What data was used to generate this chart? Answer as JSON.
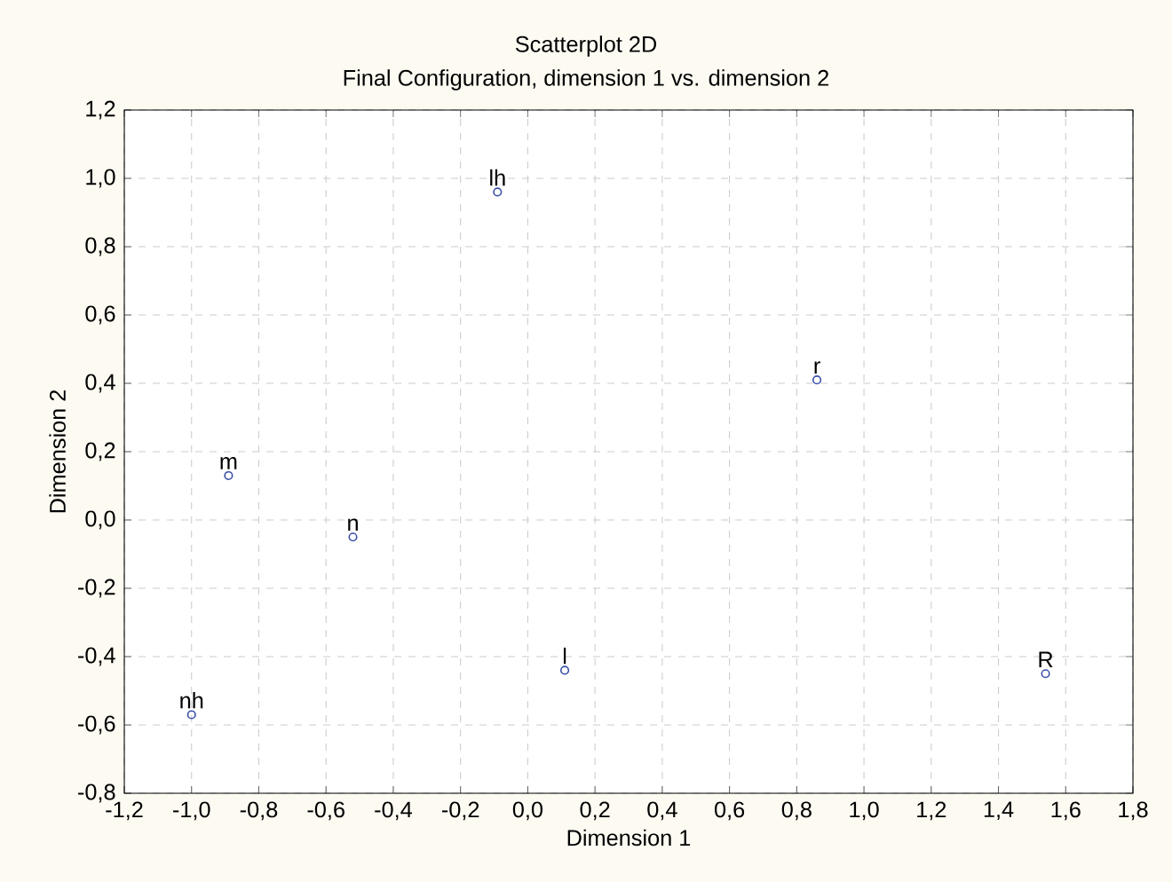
{
  "chart_data": {
    "type": "scatter",
    "title": "Scatterplot 2D",
    "subtitle": "Final Configuration, dimension 1  vs. dimension 2",
    "xlabel": "Dimension 1",
    "ylabel": "Dimension 2",
    "x": [
      -0.09,
      0.86,
      -0.89,
      -0.52,
      0.11,
      1.54,
      -1.0
    ],
    "series": [
      {
        "color": "#3a50a8",
        "values": [
          0.96,
          0.41,
          0.13,
          -0.05,
          -0.44,
          -0.45,
          -0.57
        ]
      }
    ],
    "annotations": [
      {
        "text": "lh",
        "x": -0.09,
        "y": 0.96
      },
      {
        "text": "r",
        "x": 0.86,
        "y": 0.41
      },
      {
        "text": "m",
        "x": -0.89,
        "y": 0.13
      },
      {
        "text": "n",
        "x": -0.52,
        "y": -0.05
      },
      {
        "text": "l",
        "x": 0.11,
        "y": -0.44
      },
      {
        "text": "R",
        "x": 1.54,
        "y": -0.45
      },
      {
        "text": "nh",
        "x": -1.0,
        "y": -0.57
      }
    ],
    "marker": "circle",
    "grid": true,
    "xlim": [
      -1.2,
      1.8
    ],
    "ylim": [
      -0.8,
      1.2
    ],
    "xticks": [
      {
        "value": -1.2,
        "label": "-1,2"
      },
      {
        "value": -1.0,
        "label": "-1,0"
      },
      {
        "value": -0.8,
        "label": "-0,8"
      },
      {
        "value": -0.6,
        "label": "-0,6"
      },
      {
        "value": -0.4,
        "label": "-0,4"
      },
      {
        "value": -0.2,
        "label": "-0,2"
      },
      {
        "value": 0.0,
        "label": "0,0"
      },
      {
        "value": 0.2,
        "label": "0,2"
      },
      {
        "value": 0.4,
        "label": "0,4"
      },
      {
        "value": 0.6,
        "label": "0,6"
      },
      {
        "value": 0.8,
        "label": "0,8"
      },
      {
        "value": 1.0,
        "label": "1,0"
      },
      {
        "value": 1.2,
        "label": "1,2"
      },
      {
        "value": 1.4,
        "label": "1,4"
      },
      {
        "value": 1.6,
        "label": "1,6"
      },
      {
        "value": 1.8,
        "label": "1,8"
      }
    ],
    "yticks": [
      {
        "value": -0.8,
        "label": "-0,8"
      },
      {
        "value": -0.6,
        "label": "-0,6"
      },
      {
        "value": -0.4,
        "label": "-0,4"
      },
      {
        "value": -0.2,
        "label": "-0,2"
      },
      {
        "value": 0.0,
        "label": "0,0"
      },
      {
        "value": 0.2,
        "label": "0,2"
      },
      {
        "value": 0.4,
        "label": "0,4"
      },
      {
        "value": 0.6,
        "label": "0,6"
      },
      {
        "value": 0.8,
        "label": "0,8"
      },
      {
        "value": 1.0,
        "label": "1,0"
      },
      {
        "value": 1.2,
        "label": "1,2"
      }
    ]
  }
}
